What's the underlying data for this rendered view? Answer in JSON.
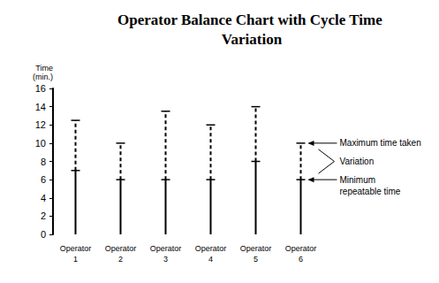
{
  "chart_data": {
    "type": "range",
    "title": "Operator Balance Chart with Cycle Time Variation",
    "ylabel": "Time (min.)",
    "categories": [
      "Operator 1",
      "Operator 2",
      "Operator 3",
      "Operator 4",
      "Operator 5",
      "Operator 6"
    ],
    "min_values": [
      7,
      6,
      6,
      6,
      8,
      6
    ],
    "max_values": [
      12.5,
      10,
      13.5,
      12,
      14,
      10
    ],
    "annotations": {
      "maximum": "Maximum time taken",
      "variation": "Variation",
      "minimum": "Minimum repeatable time"
    },
    "color": "#000000",
    "ylim": [
      0,
      16
    ],
    "yticks": [
      0,
      2,
      4,
      6,
      8,
      10,
      12,
      14,
      16
    ],
    "grid": false
  }
}
